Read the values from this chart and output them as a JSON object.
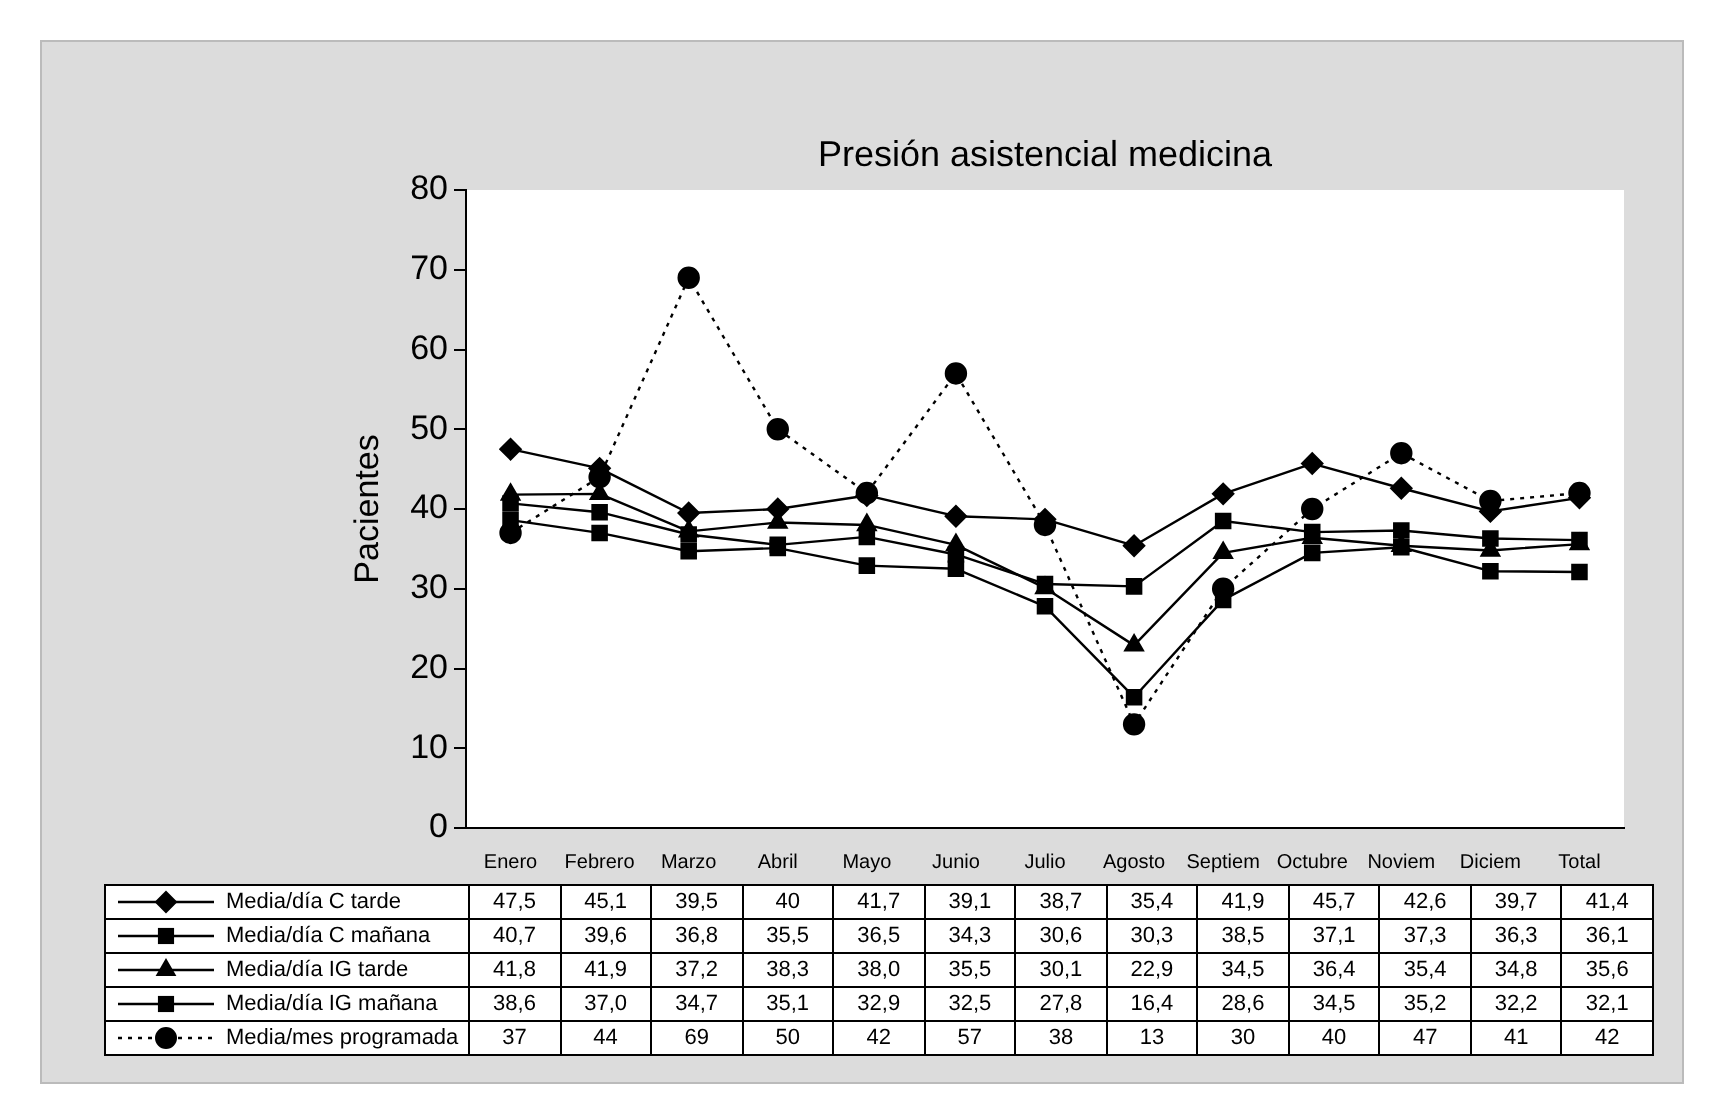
{
  "chart_data": {
    "type": "line",
    "title": "Presión asistencial medicina",
    "ylabel": "Pacientes",
    "categories": [
      "Enero",
      "Febrero",
      "Marzo",
      "Abril",
      "Mayo",
      "Junio",
      "Julio",
      "Agosto",
      "Septiem",
      "Octubre",
      "Noviem",
      "Diciem",
      "Total"
    ],
    "ylim": [
      0,
      80
    ],
    "yticks": [
      0,
      10,
      20,
      30,
      40,
      50,
      60,
      70,
      80
    ],
    "grid": false,
    "legend": "bottom",
    "series": [
      {
        "name": "Media/día C tarde",
        "color": "#000000",
        "marker": "diamond",
        "line_style": "solid",
        "values": [
          47.5,
          45.1,
          39.5,
          40,
          41.7,
          39.1,
          38.7,
          35.4,
          41.9,
          45.7,
          42.6,
          39.7,
          41.4
        ],
        "value_labels": [
          "47,5",
          "45,1",
          "39,5",
          "40",
          "41,7",
          "39,1",
          "38,7",
          "35,4",
          "41,9",
          "45,7",
          "42,6",
          "39,7",
          "41,4"
        ]
      },
      {
        "name": "Media/día C mañana",
        "color": "#000000",
        "marker": "square",
        "line_style": "solid",
        "values": [
          40.7,
          39.6,
          36.8,
          35.5,
          36.5,
          34.3,
          30.6,
          30.3,
          38.5,
          37.1,
          37.3,
          36.3,
          36.1
        ],
        "value_labels": [
          "40,7",
          "39,6",
          "36,8",
          "35,5",
          "36,5",
          "34,3",
          "30,6",
          "30,3",
          "38,5",
          "37,1",
          "37,3",
          "36,3",
          "36,1"
        ]
      },
      {
        "name": "Media/día IG tarde",
        "color": "#000000",
        "marker": "triangle",
        "line_style": "solid",
        "values": [
          41.8,
          41.9,
          37.2,
          38.3,
          38.0,
          35.5,
          30.1,
          22.9,
          34.5,
          36.4,
          35.4,
          34.8,
          35.6
        ],
        "value_labels": [
          "41,8",
          "41,9",
          "37,2",
          "38,3",
          "38,0",
          "35,5",
          "30,1",
          "22,9",
          "34,5",
          "36,4",
          "35,4",
          "34,8",
          "35,6"
        ]
      },
      {
        "name": "Media/día IG mañana",
        "color": "#000000",
        "marker": "square",
        "line_style": "solid",
        "values": [
          38.6,
          37.0,
          34.7,
          35.1,
          32.9,
          32.5,
          27.8,
          16.4,
          28.6,
          34.5,
          35.2,
          32.2,
          32.1
        ],
        "value_labels": [
          "38,6",
          "37,0",
          "34,7",
          "35,1",
          "32,9",
          "32,5",
          "27,8",
          "16,4",
          "28,6",
          "34,5",
          "35,2",
          "32,2",
          "32,1"
        ]
      },
      {
        "name": "Media/mes programada",
        "color": "#000000",
        "marker": "circle",
        "line_style": "dotted",
        "values": [
          37,
          44,
          69,
          50,
          42,
          57,
          38,
          13,
          30,
          40,
          47,
          41,
          42
        ],
        "value_labels": [
          "37",
          "44",
          "69",
          "50",
          "42",
          "57",
          "38",
          "13",
          "30",
          "40",
          "47",
          "41",
          "42"
        ]
      }
    ]
  }
}
